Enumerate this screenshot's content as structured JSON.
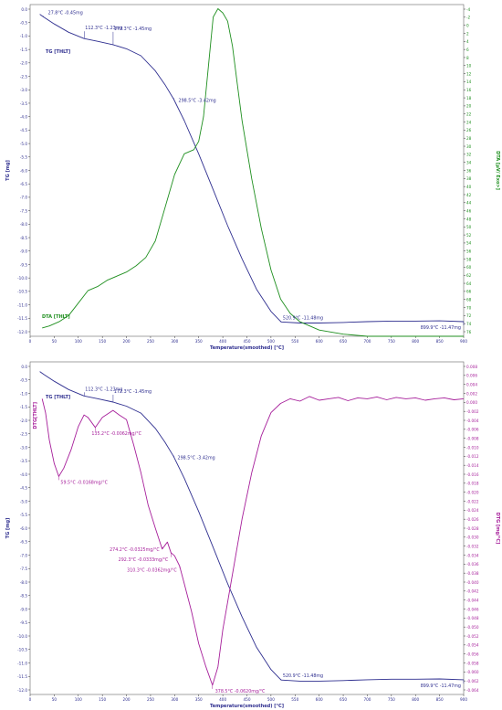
{
  "chart_data": [
    {
      "type": "line",
      "xlabel": "Temperature(smoothed) [°C]",
      "xlim": [
        0,
        900
      ],
      "xticks": [
        0,
        50,
        100,
        150,
        200,
        250,
        300,
        350,
        400,
        450,
        500,
        550,
        600,
        650,
        700,
        750,
        800,
        850,
        900
      ],
      "left_axis": {
        "label": "TG [mg]",
        "ylim": [
          -12,
          0
        ],
        "ticks": [
          "0.0",
          "-0.5",
          "-1.0",
          "-1.5",
          "-2.0",
          "-2.5",
          "-3.0",
          "-3.5",
          "-4.0",
          "-4.5",
          "-5.0",
          "-5.5",
          "-6.0",
          "-6.5",
          "-7.0",
          "-7.5",
          "-8.0",
          "-8.5",
          "-9.0",
          "-9.5",
          "-10.0",
          "-10.5",
          "-11.0",
          "-11.5",
          "-12.0"
        ],
        "color": "#2e2e8f"
      },
      "right_axis": {
        "label": "DTA [µV/ Exo>]",
        "ylim": [
          -4,
          76
        ],
        "ticks": [
          "-4",
          "-2",
          "0",
          "2",
          "4",
          "6",
          "8",
          "10",
          "12",
          "14",
          "16",
          "18",
          "20",
          "22",
          "24",
          "26",
          "28",
          "30",
          "32",
          "34",
          "36",
          "38",
          "40",
          "42",
          "44",
          "46",
          "48",
          "50",
          "52",
          "54",
          "56",
          "58",
          "60",
          "62",
          "64",
          "66",
          "68",
          "70",
          "72",
          "74",
          "76"
        ],
        "color": "#1f8f1f"
      },
      "series": [
        {
          "name": "TG [THLT]",
          "axis": "left",
          "color": "#2e2e8f",
          "x": [
            20,
            28,
            50,
            80,
            112,
            140,
            172,
            200,
            230,
            260,
            280,
            298,
            320,
            350,
            380,
            410,
            440,
            470,
            500,
            521,
            560,
            600,
            650,
            700,
            750,
            800,
            850,
            900
          ],
          "y": [
            -0.35,
            -0.45,
            -0.7,
            -1.0,
            -1.23,
            -1.33,
            -1.45,
            -1.6,
            -1.85,
            -2.4,
            -2.9,
            -3.42,
            -4.2,
            -5.4,
            -6.7,
            -8.0,
            -9.2,
            -10.3,
            -11.1,
            -11.48,
            -11.52,
            -11.52,
            -11.5,
            -11.47,
            -11.45,
            -11.45,
            -11.44,
            -11.47
          ]
        },
        {
          "name": "DTA [THLT]",
          "axis": "right",
          "color": "#1f8f1f",
          "x": [
            25,
            40,
            60,
            80,
            100,
            120,
            140,
            160,
            180,
            200,
            220,
            240,
            260,
            280,
            300,
            320,
            340,
            350,
            360,
            370,
            380,
            390,
            400,
            410,
            420,
            430,
            440,
            460,
            480,
            500,
            520,
            540,
            560,
            600,
            650,
            700,
            750,
            800,
            850,
            900
          ],
          "y": [
            -2,
            -1.5,
            -0.5,
            1,
            4,
            7,
            8,
            9.5,
            10.5,
            11.5,
            13,
            15,
            19,
            27,
            35,
            40,
            41,
            43,
            49,
            61,
            73,
            75,
            74,
            72,
            66,
            57,
            48,
            34,
            22,
            12,
            5,
            1.5,
            -0.5,
            -2.5,
            -3.5,
            -4,
            -4,
            -4,
            -4,
            -4
          ]
        }
      ],
      "annotations": [
        "27.8°C  -0.45mg",
        "112.3°C  -1.23mg",
        "172.3°C  -1.45mg",
        "298.5°C  -3.42mg",
        "520.9°C  -11.48mg",
        "899.9°C  -11.47mg"
      ],
      "legend": [
        "TG [THLT]",
        "DTA [THLT]"
      ]
    },
    {
      "type": "line",
      "xlabel": "Temperature(smoothed) [°C]",
      "xlim": [
        0,
        900
      ],
      "xticks": [
        0,
        50,
        100,
        150,
        200,
        250,
        300,
        350,
        400,
        450,
        500,
        550,
        600,
        650,
        700,
        750,
        800,
        850,
        900
      ],
      "left_axis": {
        "label": "TG [mg]",
        "ylim": [
          -12,
          0
        ],
        "ticks": [
          "0.0",
          "-0.5",
          "-1.0",
          "-1.5",
          "-2.0",
          "-2.5",
          "-3.0",
          "-3.5",
          "-4.0",
          "-4.5",
          "-5.0",
          "-5.5",
          "-6.0",
          "-6.5",
          "-7.0",
          "-7.5",
          "-8.0",
          "-8.5",
          "-9.0",
          "-9.5",
          "-10.0",
          "-10.5",
          "-11.0",
          "-11.5",
          "-12.0"
        ],
        "color": "#2e2e8f"
      },
      "right_axis": {
        "label": "DTG [mg/°C]",
        "ylim": [
          -0.064,
          0.008
        ],
        "ticks": [
          "0.008",
          "0.006",
          "0.004",
          "0.002",
          "0.000",
          "-0.002",
          "-0.004",
          "-0.006",
          "-0.008",
          "-0.010",
          "-0.012",
          "-0.014",
          "-0.016",
          "-0.018",
          "-0.020",
          "-0.022",
          "-0.024",
          "-0.026",
          "-0.028",
          "-0.030",
          "-0.032",
          "-0.034",
          "-0.036",
          "-0.038",
          "-0.040",
          "-0.042",
          "-0.044",
          "-0.046",
          "-0.048",
          "-0.050",
          "-0.052",
          "-0.054",
          "-0.056",
          "-0.058",
          "-0.060",
          "-0.062",
          "-0.064"
        ],
        "color": "#a61e9a"
      },
      "series": [
        {
          "name": "TG [THLT]",
          "axis": "left",
          "color": "#2e2e8f",
          "x": [
            20,
            28,
            50,
            80,
            112,
            140,
            172,
            200,
            230,
            260,
            280,
            298,
            320,
            350,
            380,
            410,
            440,
            470,
            500,
            521,
            560,
            600,
            650,
            700,
            750,
            800,
            850,
            900
          ],
          "y": [
            -0.35,
            -0.45,
            -0.7,
            -1.0,
            -1.23,
            -1.33,
            -1.45,
            -1.6,
            -1.85,
            -2.4,
            -2.9,
            -3.42,
            -4.2,
            -5.4,
            -6.7,
            -8.0,
            -9.2,
            -10.3,
            -11.1,
            -11.48,
            -11.52,
            -11.52,
            -11.5,
            -11.47,
            -11.45,
            -11.45,
            -11.44,
            -11.47
          ]
        },
        {
          "name": "DTG[THLT]",
          "axis": "right",
          "color": "#a61e9a",
          "x": [
            25,
            32,
            40,
            50,
            59.5,
            70,
            85,
            100,
            112,
            120,
            135.2,
            150,
            172,
            185,
            200,
            215,
            230,
            245,
            260,
            274.2,
            285,
            292.3,
            300,
            310.3,
            320,
            335,
            350,
            365,
            378.5,
            390,
            400,
            410,
            425,
            440,
            460,
            480,
            500,
            520,
            540,
            560,
            580,
            600,
            620,
            640,
            660,
            680,
            700,
            720,
            740,
            760,
            780,
            800,
            820,
            840,
            860,
            880,
            900
          ],
          "y": [
            0.0,
            -0.003,
            -0.009,
            -0.014,
            -0.0168,
            -0.015,
            -0.011,
            -0.006,
            -0.0035,
            -0.004,
            -0.0062,
            -0.004,
            -0.0025,
            -0.0035,
            -0.0045,
            -0.01,
            -0.016,
            -0.023,
            -0.028,
            -0.0325,
            -0.031,
            -0.0333,
            -0.034,
            -0.0362,
            -0.04,
            -0.046,
            -0.053,
            -0.058,
            -0.062,
            -0.058,
            -0.05,
            -0.044,
            -0.035,
            -0.026,
            -0.016,
            -0.008,
            -0.003,
            -0.001,
            0.0,
            -0.0005,
            0.0005,
            -0.0003,
            0.0,
            0.0003,
            -0.0004,
            0.0002,
            0.0,
            0.0004,
            -0.0002,
            0.0003,
            0.0,
            0.0002,
            -0.0003,
            0.0,
            0.0002,
            -0.0002,
            0.0
          ]
        }
      ],
      "annotations": [
        "112.3°C  -1.23mg",
        "172.3°C  -1.45mg",
        "135.2°C  -0.0062mg/°C",
        "59.5°C  -0.0168mg/°C",
        "298.5°C  -3.42mg",
        "274.2°C  -0.0325mg/°C",
        "292.3°C  -0.0333mg/°C",
        "310.3°C  -0.0362mg/°C",
        "378.5°C  -0.0620mg/°C",
        "520.9°C  -11.48mg",
        "899.9°C  -11.47mg"
      ],
      "legend": [
        "TG [THLT]",
        "DTG[THLT]"
      ]
    }
  ]
}
